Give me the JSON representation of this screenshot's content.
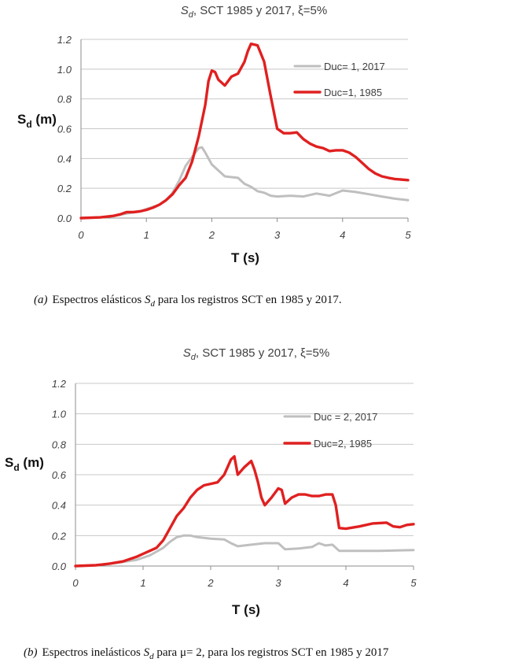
{
  "chart_data": [
    {
      "type": "line",
      "title_sym": "S",
      "title_sub": "d",
      "title_rest": ", SCT 1985 y 2017, ξ=5%",
      "xlabel": "T (s)",
      "ylabel_sym": "S",
      "ylabel_sub": "d",
      "ylabel_rest": " (m)",
      "xlim": [
        0,
        5
      ],
      "ylim": [
        0,
        1.2
      ],
      "xticks": [
        "0",
        "1",
        "2",
        "3",
        "4",
        "5"
      ],
      "yticks": [
        "0.0",
        "0.2",
        "0.4",
        "0.6",
        "0.8",
        "1.0",
        "1.2"
      ],
      "grid": true,
      "legend_position": "top-right",
      "caption_tag": "(a)",
      "caption_pre": "Espectros elásticos ",
      "caption_sym": "S",
      "caption_sub": "d",
      "caption_post": " para los registros SCT en 1985 y 2017.",
      "series": [
        {
          "name": "Duc= 1, 2017",
          "color": "#bfbfbf",
          "points": [
            [
              0,
              0
            ],
            [
              0.3,
              0.005
            ],
            [
              0.5,
              0.015
            ],
            [
              0.7,
              0.03
            ],
            [
              0.9,
              0.045
            ],
            [
              1.0,
              0.06
            ],
            [
              1.1,
              0.075
            ],
            [
              1.2,
              0.09
            ],
            [
              1.3,
              0.12
            ],
            [
              1.4,
              0.17
            ],
            [
              1.5,
              0.25
            ],
            [
              1.6,
              0.35
            ],
            [
              1.7,
              0.41
            ],
            [
              1.8,
              0.47
            ],
            [
              1.85,
              0.475
            ],
            [
              1.9,
              0.44
            ],
            [
              2.0,
              0.36
            ],
            [
              2.1,
              0.32
            ],
            [
              2.2,
              0.28
            ],
            [
              2.3,
              0.275
            ],
            [
              2.4,
              0.27
            ],
            [
              2.5,
              0.23
            ],
            [
              2.6,
              0.21
            ],
            [
              2.7,
              0.18
            ],
            [
              2.8,
              0.17
            ],
            [
              2.9,
              0.15
            ],
            [
              3.0,
              0.145
            ],
            [
              3.2,
              0.15
            ],
            [
              3.4,
              0.145
            ],
            [
              3.6,
              0.165
            ],
            [
              3.8,
              0.15
            ],
            [
              4.0,
              0.185
            ],
            [
              4.2,
              0.175
            ],
            [
              4.4,
              0.16
            ],
            [
              4.6,
              0.145
            ],
            [
              4.8,
              0.13
            ],
            [
              5.0,
              0.12
            ]
          ]
        },
        {
          "name": "Duc=1, 1985",
          "color": "#e02020",
          "points": [
            [
              0,
              0
            ],
            [
              0.3,
              0.005
            ],
            [
              0.5,
              0.015
            ],
            [
              0.6,
              0.025
            ],
            [
              0.7,
              0.04
            ],
            [
              0.8,
              0.04
            ],
            [
              0.9,
              0.045
            ],
            [
              1.0,
              0.055
            ],
            [
              1.1,
              0.07
            ],
            [
              1.2,
              0.09
            ],
            [
              1.3,
              0.12
            ],
            [
              1.4,
              0.16
            ],
            [
              1.5,
              0.22
            ],
            [
              1.6,
              0.27
            ],
            [
              1.7,
              0.38
            ],
            [
              1.8,
              0.55
            ],
            [
              1.9,
              0.76
            ],
            [
              1.95,
              0.92
            ],
            [
              2.0,
              0.99
            ],
            [
              2.05,
              0.98
            ],
            [
              2.1,
              0.93
            ],
            [
              2.2,
              0.89
            ],
            [
              2.3,
              0.95
            ],
            [
              2.4,
              0.97
            ],
            [
              2.5,
              1.05
            ],
            [
              2.55,
              1.12
            ],
            [
              2.6,
              1.17
            ],
            [
              2.7,
              1.16
            ],
            [
              2.8,
              1.05
            ],
            [
              2.9,
              0.82
            ],
            [
              3.0,
              0.6
            ],
            [
              3.1,
              0.57
            ],
            [
              3.2,
              0.57
            ],
            [
              3.3,
              0.575
            ],
            [
              3.4,
              0.53
            ],
            [
              3.5,
              0.5
            ],
            [
              3.6,
              0.48
            ],
            [
              3.7,
              0.47
            ],
            [
              3.8,
              0.45
            ],
            [
              3.9,
              0.455
            ],
            [
              4.0,
              0.455
            ],
            [
              4.1,
              0.44
            ],
            [
              4.2,
              0.41
            ],
            [
              4.3,
              0.37
            ],
            [
              4.4,
              0.33
            ],
            [
              4.5,
              0.3
            ],
            [
              4.6,
              0.28
            ],
            [
              4.7,
              0.27
            ],
            [
              4.8,
              0.262
            ],
            [
              5.0,
              0.255
            ]
          ]
        }
      ]
    },
    {
      "type": "line",
      "title_sym": "S",
      "title_sub": "d",
      "title_rest": ", SCT 1985 y 2017, ξ=5%",
      "xlabel": "T (s)",
      "ylabel_sym": "S",
      "ylabel_sub": "d",
      "ylabel_rest": " (m)",
      "xlim": [
        0,
        5
      ],
      "ylim": [
        0,
        1.2
      ],
      "xticks": [
        "0",
        "1",
        "2",
        "3",
        "4",
        "5"
      ],
      "yticks": [
        "0.0",
        "0.2",
        "0.4",
        "0.6",
        "0.8",
        "1.0",
        "1.2"
      ],
      "grid": true,
      "legend_position": "top-right",
      "caption_tag": "(b)",
      "caption_pre": "Espectros inelásticos ",
      "caption_sym": "S",
      "caption_sub": "d",
      "caption_post": " para μ= 2,  para los registros SCT en 1985 y 2017",
      "series": [
        {
          "name": "Duc = 2, 2017",
          "color": "#bfbfbf",
          "points": [
            [
              0,
              0
            ],
            [
              0.3,
              0.005
            ],
            [
              0.6,
              0.02
            ],
            [
              0.9,
              0.04
            ],
            [
              1.1,
              0.07
            ],
            [
              1.3,
              0.12
            ],
            [
              1.4,
              0.16
            ],
            [
              1.5,
              0.19
            ],
            [
              1.6,
              0.2
            ],
            [
              1.7,
              0.2
            ],
            [
              1.8,
              0.19
            ],
            [
              2.0,
              0.18
            ],
            [
              2.2,
              0.175
            ],
            [
              2.3,
              0.15
            ],
            [
              2.4,
              0.13
            ],
            [
              2.6,
              0.14
            ],
            [
              2.8,
              0.15
            ],
            [
              3.0,
              0.15
            ],
            [
              3.1,
              0.11
            ],
            [
              3.3,
              0.115
            ],
            [
              3.5,
              0.125
            ],
            [
              3.6,
              0.15
            ],
            [
              3.7,
              0.135
            ],
            [
              3.8,
              0.14
            ],
            [
              3.9,
              0.1
            ],
            [
              4.2,
              0.1
            ],
            [
              4.5,
              0.1
            ],
            [
              5.0,
              0.105
            ]
          ]
        },
        {
          "name": "Duc=2, 1985",
          "color": "#e02020",
          "points": [
            [
              0,
              0
            ],
            [
              0.3,
              0.005
            ],
            [
              0.5,
              0.015
            ],
            [
              0.7,
              0.03
            ],
            [
              0.9,
              0.06
            ],
            [
              1.0,
              0.08
            ],
            [
              1.1,
              0.1
            ],
            [
              1.2,
              0.12
            ],
            [
              1.3,
              0.17
            ],
            [
              1.4,
              0.25
            ],
            [
              1.5,
              0.33
            ],
            [
              1.6,
              0.38
            ],
            [
              1.7,
              0.45
            ],
            [
              1.8,
              0.5
            ],
            [
              1.9,
              0.53
            ],
            [
              2.0,
              0.54
            ],
            [
              2.1,
              0.55
            ],
            [
              2.2,
              0.6
            ],
            [
              2.3,
              0.7
            ],
            [
              2.35,
              0.72
            ],
            [
              2.4,
              0.6
            ],
            [
              2.5,
              0.65
            ],
            [
              2.6,
              0.69
            ],
            [
              2.65,
              0.63
            ],
            [
              2.7,
              0.55
            ],
            [
              2.75,
              0.45
            ],
            [
              2.8,
              0.4
            ],
            [
              2.9,
              0.45
            ],
            [
              3.0,
              0.51
            ],
            [
              3.05,
              0.5
            ],
            [
              3.1,
              0.41
            ],
            [
              3.2,
              0.45
            ],
            [
              3.3,
              0.47
            ],
            [
              3.4,
              0.47
            ],
            [
              3.5,
              0.46
            ],
            [
              3.6,
              0.46
            ],
            [
              3.7,
              0.47
            ],
            [
              3.8,
              0.47
            ],
            [
              3.85,
              0.4
            ],
            [
              3.9,
              0.25
            ],
            [
              4.0,
              0.245
            ],
            [
              4.2,
              0.26
            ],
            [
              4.4,
              0.28
            ],
            [
              4.6,
              0.285
            ],
            [
              4.7,
              0.26
            ],
            [
              4.8,
              0.255
            ],
            [
              4.9,
              0.27
            ],
            [
              5.0,
              0.275
            ]
          ]
        }
      ]
    }
  ]
}
